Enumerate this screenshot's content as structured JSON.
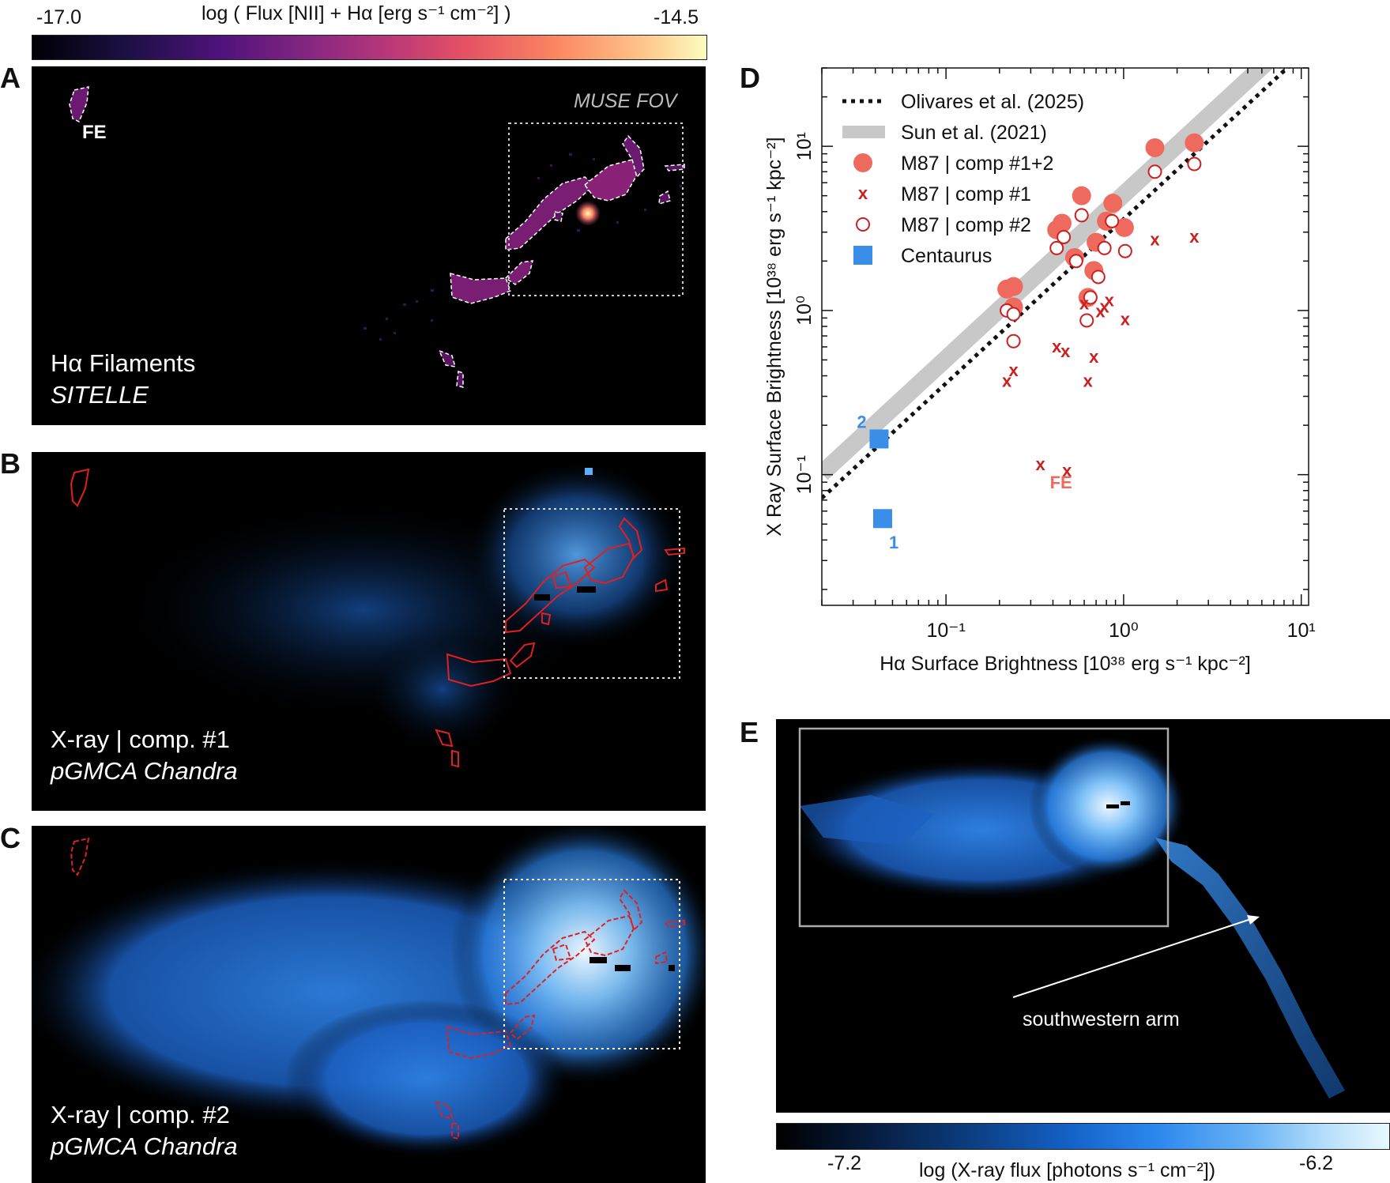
{
  "colorbar_top": {
    "label": "log ( Flux [NII] + Hα [erg s⁻¹ cm⁻²] )",
    "min_label": "-17.0",
    "max_label": "-14.5"
  },
  "panel_a": {
    "letter": "A",
    "title": "Hα Filaments",
    "subtitle": "SITELLE",
    "fe_label": "FE",
    "fov_label": "MUSE FOV"
  },
  "panel_b": {
    "letter": "B",
    "title": "X-ray | comp. #1",
    "subtitle": "pGMCA Chandra"
  },
  "panel_c": {
    "letter": "C",
    "title": "X-ray | comp. #2",
    "subtitle": "pGMCA Chandra"
  },
  "panel_e": {
    "letter": "E",
    "annotation": "southwestern arm"
  },
  "colorbar_bottom": {
    "label": "log (X-ray flux [photons s⁻¹ cm⁻²])",
    "min_label": "-7.2",
    "max_label": "-6.2"
  },
  "chart_data": {
    "type": "scatter",
    "letter": "D",
    "xlabel": "Hα Surface Brightness [10³⁸ erg s⁻¹ kpc⁻²]",
    "ylabel": "X Ray Surface Brightness [10³⁸ erg s⁻¹ kpc⁻²]",
    "xscale": "log",
    "yscale": "log",
    "xlim": [
      0.02,
      11
    ],
    "ylim": [
      0.016,
      30
    ],
    "xtick_labels": [
      "10⁻¹",
      "10⁰",
      "10¹"
    ],
    "ytick_labels": [
      "10⁻¹",
      "10⁰",
      "10¹"
    ],
    "legend_position": "top-left",
    "legend": [
      "Olivares et al. (2025)",
      "Sun et al. (2021)",
      "M87 | comp #1+2",
      "M87 | comp #1",
      "M87 | comp #2",
      "Centaurus"
    ],
    "colors": {
      "m87": "#ef6a5e",
      "m87_dark": "#cc1f1f",
      "centaurus": "#3a8ee8",
      "sun_band": "#c8c8c8"
    },
    "series": [
      {
        "name": "M87 | comp #1+2",
        "x": [
          1.5,
          2.5,
          0.58,
          0.87,
          0.8,
          0.45,
          0.42,
          1.01,
          0.7,
          0.53,
          0.68,
          0.63,
          0.22,
          0.24,
          0.24
        ],
        "y": [
          9.8,
          10.5,
          5.0,
          4.5,
          3.5,
          3.4,
          3.1,
          3.2,
          2.6,
          2.1,
          1.75,
          1.2,
          1.35,
          1.4,
          1.05
        ]
      },
      {
        "name": "M87 | comp #1",
        "x": [
          1.5,
          2.5,
          0.6,
          0.83,
          1.02,
          0.74,
          0.78,
          0.42,
          0.47,
          0.68,
          0.24,
          0.22,
          0.63,
          0.34,
          0.48
        ],
        "y": [
          2.7,
          2.8,
          1.1,
          1.15,
          0.88,
          0.98,
          1.05,
          0.6,
          0.56,
          0.52,
          0.43,
          0.37,
          0.37,
          0.115,
          0.105
        ]
      },
      {
        "name": "M87 | comp #2",
        "x": [
          1.5,
          2.5,
          0.58,
          0.86,
          0.78,
          0.46,
          0.42,
          1.02,
          0.72,
          0.54,
          0.65,
          0.62,
          0.22,
          0.24,
          0.24
        ],
        "y": [
          7.0,
          7.8,
          3.8,
          3.5,
          2.4,
          2.8,
          2.4,
          2.3,
          1.6,
          2.0,
          1.2,
          0.87,
          1.0,
          0.95,
          0.65
        ]
      },
      {
        "name": "Centaurus",
        "x": [
          0.042,
          0.044
        ],
        "y": [
          0.165,
          0.054
        ],
        "labels": [
          "2",
          "1"
        ]
      }
    ],
    "fe_point": {
      "x": 0.34,
      "y": 0.115,
      "label": "FE"
    },
    "olivares_line": {
      "slope": 1.0,
      "intercept": 3.25
    },
    "sun_band": {
      "slope": 1.0,
      "intercept": 3.4
    }
  }
}
